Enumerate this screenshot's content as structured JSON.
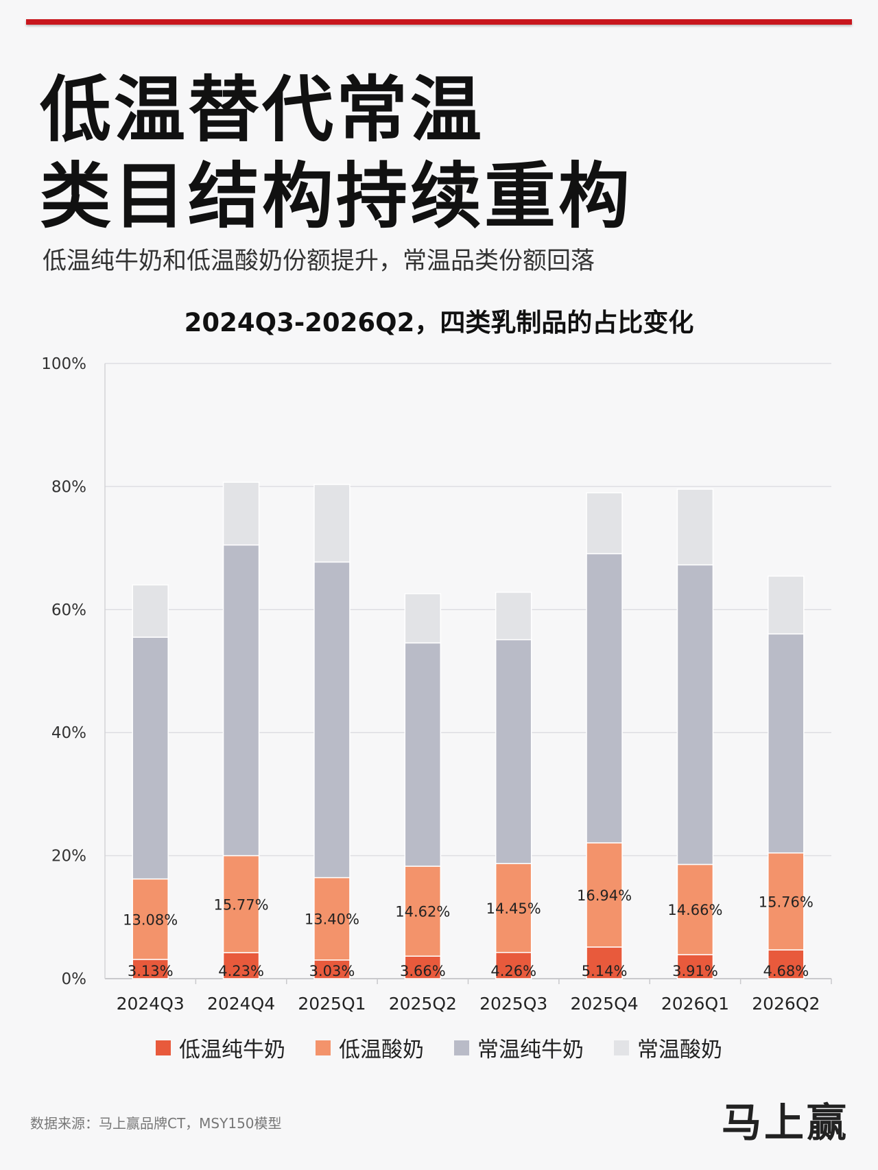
{
  "header": {
    "headline_line1": "低温替代常温",
    "headline_line2": "类目结构持续重构",
    "subtitle": "低温纯牛奶和低温酸奶份额提升，常温品类份额回落",
    "accent_color": "#c8161d"
  },
  "chart_data": {
    "type": "bar",
    "stacked": true,
    "title": "2024Q3-2026Q2，四类乳制品的占比变化",
    "xlabel": "",
    "ylabel": "",
    "ylim": [
      0,
      100
    ],
    "yticks": [
      "0%",
      "20%",
      "40%",
      "60%",
      "80%",
      "100%"
    ],
    "grid": true,
    "legend_position": "bottom",
    "categories": [
      "2024Q3",
      "2024Q4",
      "2025Q1",
      "2025Q2",
      "2025Q3",
      "2025Q4",
      "2026Q1",
      "2026Q2"
    ],
    "series": [
      {
        "name": "低温纯牛奶",
        "color": "#e85a3c",
        "values": [
          3.13,
          4.23,
          3.03,
          3.66,
          4.26,
          5.14,
          3.91,
          4.68
        ],
        "labels": [
          "3.13%",
          "4.23%",
          "3.03%",
          "3.66%",
          "4.26%",
          "5.14%",
          "3.91%",
          "4.68%"
        ]
      },
      {
        "name": "低温酸奶",
        "color": "#f3936b",
        "values": [
          13.08,
          15.77,
          13.4,
          14.62,
          14.45,
          16.94,
          14.66,
          15.76
        ],
        "labels": [
          "13.08%",
          "15.77%",
          "13.40%",
          "14.62%",
          "14.45%",
          "16.94%",
          "14.66%",
          "15.76%"
        ]
      },
      {
        "name": "常温纯牛奶",
        "color": "#b9bbc7",
        "values": [
          39.3,
          50.5,
          51.3,
          36.3,
          36.4,
          47.0,
          48.7,
          35.6
        ]
      },
      {
        "name": "常温酸奶",
        "color": "#e2e3e6",
        "values": [
          8.5,
          10.2,
          12.6,
          8.0,
          7.7,
          9.9,
          12.3,
          9.4
        ]
      }
    ]
  },
  "footer": {
    "source": "数据来源：马上赢品牌CT，MSY150模型",
    "brand": "马上赢"
  }
}
